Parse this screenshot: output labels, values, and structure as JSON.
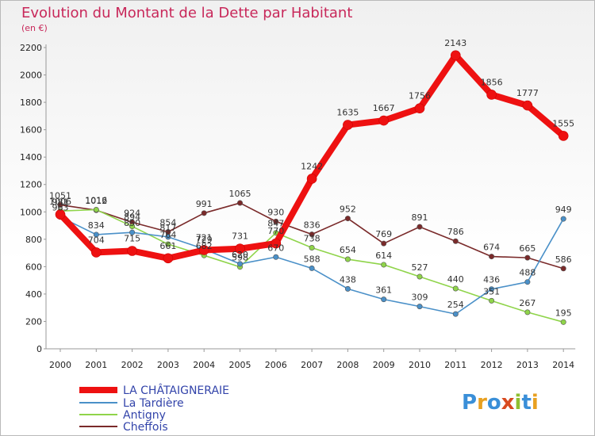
{
  "chart_data": {
    "type": "line",
    "title": "Evolution du Montant de la Dette par Habitant",
    "subtitle": "(en €)",
    "x": [
      "2000",
      "2001",
      "2002",
      "2003",
      "2004",
      "2005",
      "2006",
      "2007",
      "2008",
      "2009",
      "2010",
      "2011",
      "2012",
      "2013",
      "2014"
    ],
    "ylim": [
      0,
      2200
    ],
    "yticks": [
      0,
      200,
      400,
      600,
      800,
      1000,
      1200,
      1400,
      1600,
      1800,
      2000,
      2200
    ],
    "grid": false,
    "legend_position": "bottom-left",
    "series": [
      {
        "name": "Cheffois",
        "color": "#7a2a2a",
        "values": [
          1051,
          1012,
          924,
          854,
          991,
          1065,
          930,
          836,
          952,
          769,
          891,
          786,
          674,
          665,
          586
        ]
      },
      {
        "name": "Antigny",
        "color": "#8fd44a",
        "values": [
          1006,
          1016,
          894,
          764,
          682,
          598,
          847,
          738,
          654,
          614,
          527,
          440,
          351,
          267,
          195
        ]
      },
      {
        "name": "La Tardière",
        "color": "#4a90c8",
        "values": [
          963,
          834,
          850,
          817,
          729,
          620,
          670,
          588,
          438,
          361,
          309,
          254,
          436,
          488,
          949
        ]
      },
      {
        "name": "LA CHÂTAIGNERAIE",
        "color": "#ee1111",
        "values": [
          981,
          704,
          715,
          661,
          721,
          731,
          770,
          1242,
          1635,
          1667,
          1756,
          2143,
          1856,
          1777,
          1555
        ]
      }
    ],
    "legend": [
      "LA CHÂTAIGNERAIE",
      "La Tardière",
      "Antigny",
      "Cheffois"
    ]
  },
  "brand": {
    "logo_text": "Proxiti"
  }
}
